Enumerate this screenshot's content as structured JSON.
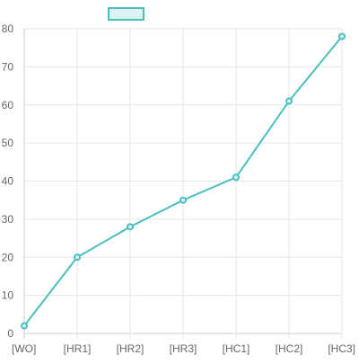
{
  "chart_data": {
    "type": "line",
    "categories": [
      "[WO]",
      "[HR1]",
      "[HR2]",
      "[HR3]",
      "[HC1]",
      "[HC2]",
      "[HC3]"
    ],
    "series": [
      {
        "values": [
          2,
          20,
          28,
          35,
          41,
          61,
          78
        ],
        "color": "#4bbfbf",
        "fill": "#dcf2f2"
      }
    ],
    "yticks": [
      "0",
      "10",
      "20",
      "30",
      "40",
      "50",
      "60",
      "70",
      "80"
    ],
    "ylim": [
      0,
      80
    ],
    "grid": true,
    "legend": "top-center",
    "title": "",
    "xlabel": "",
    "ylabel": ""
  }
}
